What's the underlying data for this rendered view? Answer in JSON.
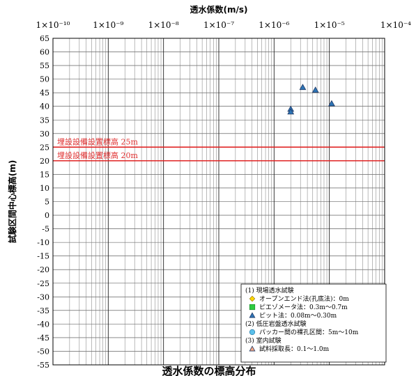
{
  "chart_data": {
    "type": "scatter",
    "xlabel": "透水係数(m/s)",
    "ylabel": "試験区間中心標高(m)",
    "x_scale": "log",
    "xlim": [
      1e-10,
      0.0001
    ],
    "x_tick_labels": [
      "1×10⁻¹⁰",
      "1×10⁻⁹",
      "1×10⁻⁸",
      "1×10⁻⁷",
      "1×10⁻⁶",
      "1×10⁻⁵",
      "1×10⁻⁴"
    ],
    "ylim": [
      -55,
      65
    ],
    "y_tick_labels": [
      "65",
      "60",
      "55",
      "50",
      "45",
      "40",
      "35",
      "30",
      "25",
      "20",
      "15",
      "10",
      "5",
      "0",
      "-5",
      "-10",
      "-15",
      "-20",
      "-25",
      "-30",
      "-35",
      "-40",
      "-45",
      "-50",
      "-55"
    ],
    "grid": true,
    "reference_lines": [
      {
        "y": 25,
        "label": "埋設設備設置標高 25m",
        "color": "#e02020"
      },
      {
        "y": 20,
        "label": "埋設設備設置標高 20m",
        "color": "#e02020"
      }
    ],
    "series": [
      {
        "name": "ピット法：0.08m～0.30m",
        "marker": "triangle",
        "color": "#2e75b6",
        "points": [
          [
            2e-06,
            39
          ],
          [
            2e-06,
            38
          ],
          [
            3.3e-06,
            47
          ],
          [
            5.6e-06,
            46
          ],
          [
            1.1e-05,
            41
          ]
        ]
      }
    ],
    "legend": {
      "placement": "bottom-right",
      "groups": [
        {
          "heading": "(1) 現場透水試験",
          "items": [
            {
              "label": "オープンエンド法(孔底法)：0m",
              "marker": "diamond",
              "color": "#ffd700"
            },
            {
              "label": "ピエゾメータ法：0.3m～0.7m",
              "marker": "square",
              "color": "#2ecc40"
            },
            {
              "label": "ピット法：0.08m～0.30m",
              "marker": "triangle",
              "color": "#2e75b6"
            }
          ]
        },
        {
          "heading": "(2) 低圧岩盤透水試験",
          "items": [
            {
              "label": "パッカー間の裸孔区間：5m～10m",
              "marker": "circle",
              "color": "#5bc0eb"
            }
          ]
        },
        {
          "heading": "(3) 室内試験",
          "items": [
            {
              "label": "試料採取長：0.1～1.0m",
              "marker": "triangle",
              "color": "#f4a582"
            }
          ]
        }
      ]
    }
  },
  "caption": "透水係数の標高分布"
}
